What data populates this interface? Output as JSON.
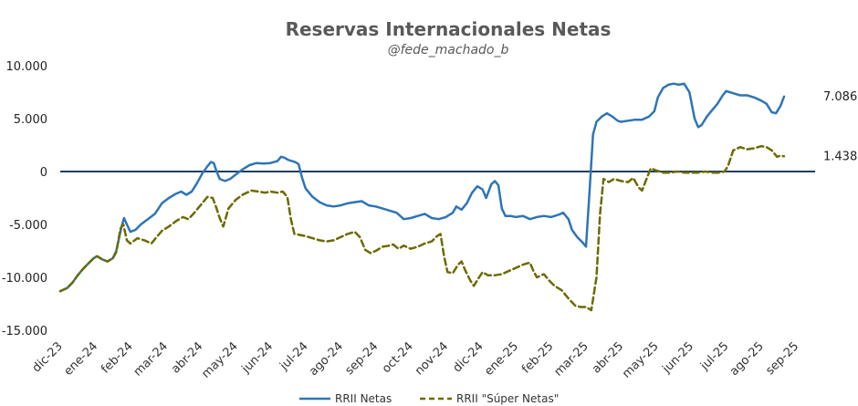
{
  "chart_data": {
    "type": "line",
    "title": "Reservas Internacionales Netas",
    "subtitle": "@fede_machado_b",
    "ylim": [
      -15000,
      10000
    ],
    "yticks": [
      10000,
      5000,
      0,
      -5000,
      -10000,
      -15000
    ],
    "ytick_labels": [
      "10.000",
      "5.000",
      "0",
      "-5.000",
      "-10.000",
      "-15.000"
    ],
    "x_month_labels": [
      "dic-23",
      "ene-24",
      "feb-24",
      "mar-24",
      "abr-24",
      "may-24",
      "jun-24",
      "jul-24",
      "ago-24",
      "sep-24",
      "oct-24",
      "nov-24",
      "dic-24",
      "ene-25",
      "feb-25",
      "mar-25",
      "abr-25",
      "may-25",
      "jun-25",
      "jul-25",
      "ago-25",
      "sep-25"
    ],
    "x_unit": "months since dic-23",
    "colors": {
      "netas": "#2E75B6",
      "super": "#6B6B00",
      "zero_line": "#1F3F5F"
    },
    "series": [
      {
        "name": "RRII Netas",
        "style": "solid",
        "end_label": "7.086",
        "points": [
          [
            0.0,
            -11300
          ],
          [
            0.2,
            -11000
          ],
          [
            0.35,
            -10500
          ],
          [
            0.5,
            -9800
          ],
          [
            0.65,
            -9200
          ],
          [
            0.8,
            -8700
          ],
          [
            0.95,
            -8200
          ],
          [
            1.05,
            -8000
          ],
          [
            1.2,
            -8300
          ],
          [
            1.35,
            -8500
          ],
          [
            1.5,
            -8200
          ],
          [
            1.6,
            -7500
          ],
          [
            1.75,
            -5200
          ],
          [
            1.82,
            -4400
          ],
          [
            1.9,
            -5000
          ],
          [
            2.0,
            -5700
          ],
          [
            2.15,
            -5500
          ],
          [
            2.3,
            -5000
          ],
          [
            2.5,
            -4500
          ],
          [
            2.7,
            -4000
          ],
          [
            2.9,
            -3000
          ],
          [
            3.1,
            -2500
          ],
          [
            3.3,
            -2100
          ],
          [
            3.45,
            -1900
          ],
          [
            3.6,
            -2200
          ],
          [
            3.75,
            -1900
          ],
          [
            3.9,
            -1100
          ],
          [
            4.05,
            -200
          ],
          [
            4.2,
            500
          ],
          [
            4.3,
            900
          ],
          [
            4.38,
            800
          ],
          [
            4.45,
            100
          ],
          [
            4.55,
            -700
          ],
          [
            4.7,
            -900
          ],
          [
            4.85,
            -700
          ],
          [
            5.0,
            -300
          ],
          [
            5.2,
            200
          ],
          [
            5.4,
            600
          ],
          [
            5.6,
            800
          ],
          [
            5.8,
            750
          ],
          [
            6.0,
            800
          ],
          [
            6.2,
            1000
          ],
          [
            6.3,
            1400
          ],
          [
            6.4,
            1300
          ],
          [
            6.5,
            1100
          ],
          [
            6.6,
            1000
          ],
          [
            6.7,
            900
          ],
          [
            6.8,
            700
          ],
          [
            6.9,
            -600
          ],
          [
            7.0,
            -1600
          ],
          [
            7.2,
            -2400
          ],
          [
            7.4,
            -2900
          ],
          [
            7.6,
            -3200
          ],
          [
            7.8,
            -3300
          ],
          [
            8.0,
            -3200
          ],
          [
            8.2,
            -3000
          ],
          [
            8.4,
            -2900
          ],
          [
            8.6,
            -2800
          ],
          [
            8.8,
            -3200
          ],
          [
            9.0,
            -3300
          ],
          [
            9.2,
            -3500
          ],
          [
            9.4,
            -3700
          ],
          [
            9.6,
            -3900
          ],
          [
            9.8,
            -4500
          ],
          [
            10.0,
            -4400
          ],
          [
            10.2,
            -4200
          ],
          [
            10.4,
            -4000
          ],
          [
            10.6,
            -4400
          ],
          [
            10.8,
            -4500
          ],
          [
            11.0,
            -4300
          ],
          [
            11.2,
            -3900
          ],
          [
            11.3,
            -3300
          ],
          [
            11.45,
            -3600
          ],
          [
            11.6,
            -3000
          ],
          [
            11.75,
            -2000
          ],
          [
            11.9,
            -1400
          ],
          [
            12.05,
            -1700
          ],
          [
            12.15,
            -2500
          ],
          [
            12.3,
            -1200
          ],
          [
            12.4,
            -900
          ],
          [
            12.5,
            -1300
          ],
          [
            12.6,
            -3500
          ],
          [
            12.7,
            -4200
          ],
          [
            12.85,
            -4200
          ],
          [
            13.0,
            -4300
          ],
          [
            13.2,
            -4200
          ],
          [
            13.4,
            -4500
          ],
          [
            13.6,
            -4300
          ],
          [
            13.8,
            -4200
          ],
          [
            14.0,
            -4300
          ],
          [
            14.2,
            -4100
          ],
          [
            14.35,
            -3900
          ],
          [
            14.5,
            -4500
          ],
          [
            14.6,
            -5500
          ],
          [
            14.75,
            -6200
          ],
          [
            14.9,
            -6700
          ],
          [
            15.0,
            -7100
          ],
          [
            15.1,
            -2000
          ],
          [
            15.2,
            3500
          ],
          [
            15.3,
            4700
          ],
          [
            15.45,
            5200
          ],
          [
            15.6,
            5500
          ],
          [
            15.75,
            5200
          ],
          [
            15.9,
            4800
          ],
          [
            16.0,
            4700
          ],
          [
            16.2,
            4800
          ],
          [
            16.4,
            4900
          ],
          [
            16.6,
            4900
          ],
          [
            16.8,
            5200
          ],
          [
            16.95,
            5700
          ],
          [
            17.05,
            7000
          ],
          [
            17.2,
            7900
          ],
          [
            17.35,
            8200
          ],
          [
            17.5,
            8300
          ],
          [
            17.65,
            8200
          ],
          [
            17.8,
            8300
          ],
          [
            17.95,
            7500
          ],
          [
            18.1,
            5000
          ],
          [
            18.2,
            4200
          ],
          [
            18.3,
            4400
          ],
          [
            18.45,
            5200
          ],
          [
            18.6,
            5800
          ],
          [
            18.75,
            6400
          ],
          [
            18.9,
            7200
          ],
          [
            19.0,
            7600
          ],
          [
            19.2,
            7400
          ],
          [
            19.4,
            7200
          ],
          [
            19.6,
            7200
          ],
          [
            19.8,
            7000
          ],
          [
            20.0,
            6700
          ],
          [
            20.15,
            6400
          ],
          [
            20.3,
            5600
          ],
          [
            20.42,
            5500
          ],
          [
            20.55,
            6200
          ],
          [
            20.65,
            7086
          ]
        ]
      },
      {
        "name": "RRII \"Súper Netas\"",
        "style": "dashed",
        "end_label": "1.438",
        "points": [
          [
            0.0,
            -11300
          ],
          [
            0.2,
            -11000
          ],
          [
            0.35,
            -10500
          ],
          [
            0.5,
            -9800
          ],
          [
            0.65,
            -9200
          ],
          [
            0.8,
            -8700
          ],
          [
            0.95,
            -8200
          ],
          [
            1.05,
            -8000
          ],
          [
            1.2,
            -8300
          ],
          [
            1.35,
            -8500
          ],
          [
            1.5,
            -8200
          ],
          [
            1.6,
            -7600
          ],
          [
            1.72,
            -5400
          ],
          [
            1.8,
            -5000
          ],
          [
            1.9,
            -6500
          ],
          [
            2.0,
            -6800
          ],
          [
            2.2,
            -6300
          ],
          [
            2.4,
            -6500
          ],
          [
            2.6,
            -6800
          ],
          [
            2.75,
            -6200
          ],
          [
            2.9,
            -5600
          ],
          [
            3.1,
            -5200
          ],
          [
            3.3,
            -4700
          ],
          [
            3.5,
            -4300
          ],
          [
            3.65,
            -4500
          ],
          [
            3.8,
            -4000
          ],
          [
            4.0,
            -3200
          ],
          [
            4.2,
            -2400
          ],
          [
            4.35,
            -2500
          ],
          [
            4.45,
            -3400
          ],
          [
            4.55,
            -4400
          ],
          [
            4.65,
            -5200
          ],
          [
            4.8,
            -3500
          ],
          [
            5.0,
            -2700
          ],
          [
            5.2,
            -2200
          ],
          [
            5.45,
            -1800
          ],
          [
            5.65,
            -1900
          ],
          [
            5.85,
            -2000
          ],
          [
            6.0,
            -1900
          ],
          [
            6.2,
            -2000
          ],
          [
            6.35,
            -1900
          ],
          [
            6.48,
            -2400
          ],
          [
            6.58,
            -4500
          ],
          [
            6.68,
            -5900
          ],
          [
            6.85,
            -6000
          ],
          [
            7.0,
            -6100
          ],
          [
            7.2,
            -6300
          ],
          [
            7.4,
            -6500
          ],
          [
            7.6,
            -6600
          ],
          [
            7.8,
            -6500
          ],
          [
            8.0,
            -6200
          ],
          [
            8.2,
            -5900
          ],
          [
            8.4,
            -5700
          ],
          [
            8.55,
            -6200
          ],
          [
            8.7,
            -7400
          ],
          [
            8.85,
            -7700
          ],
          [
            9.0,
            -7500
          ],
          [
            9.2,
            -7100
          ],
          [
            9.4,
            -7000
          ],
          [
            9.5,
            -6900
          ],
          [
            9.65,
            -7300
          ],
          [
            9.8,
            -7000
          ],
          [
            10.0,
            -7300
          ],
          [
            10.2,
            -7100
          ],
          [
            10.4,
            -6800
          ],
          [
            10.6,
            -6600
          ],
          [
            10.75,
            -6100
          ],
          [
            10.85,
            -5900
          ],
          [
            10.95,
            -8000
          ],
          [
            11.05,
            -9500
          ],
          [
            11.2,
            -9600
          ],
          [
            11.35,
            -8800
          ],
          [
            11.45,
            -8500
          ],
          [
            11.55,
            -9300
          ],
          [
            11.7,
            -10300
          ],
          [
            11.8,
            -10800
          ],
          [
            11.95,
            -10000
          ],
          [
            12.05,
            -9500
          ],
          [
            12.2,
            -9800
          ],
          [
            12.4,
            -9800
          ],
          [
            12.6,
            -9700
          ],
          [
            12.8,
            -9400
          ],
          [
            13.0,
            -9100
          ],
          [
            13.2,
            -8800
          ],
          [
            13.4,
            -8600
          ],
          [
            13.5,
            -9400
          ],
          [
            13.6,
            -10000
          ],
          [
            13.8,
            -9700
          ],
          [
            13.95,
            -10300
          ],
          [
            14.1,
            -10800
          ],
          [
            14.3,
            -11200
          ],
          [
            14.5,
            -12000
          ],
          [
            14.7,
            -12700
          ],
          [
            14.85,
            -12800
          ],
          [
            15.0,
            -12800
          ],
          [
            15.15,
            -13100
          ],
          [
            15.3,
            -10000
          ],
          [
            15.4,
            -4000
          ],
          [
            15.5,
            -700
          ],
          [
            15.65,
            -1000
          ],
          [
            15.8,
            -700
          ],
          [
            16.0,
            -900
          ],
          [
            16.2,
            -1000
          ],
          [
            16.35,
            -600
          ],
          [
            16.5,
            -1500
          ],
          [
            16.6,
            -1800
          ],
          [
            16.75,
            -500
          ],
          [
            16.85,
            300
          ],
          [
            17.0,
            100
          ],
          [
            17.2,
            -100
          ],
          [
            17.4,
            -100
          ],
          [
            17.6,
            0
          ],
          [
            17.8,
            -100
          ],
          [
            18.0,
            -100
          ],
          [
            18.2,
            -100
          ],
          [
            18.4,
            0
          ],
          [
            18.6,
            -100
          ],
          [
            18.8,
            -100
          ],
          [
            18.95,
            0
          ],
          [
            19.05,
            500
          ],
          [
            19.2,
            2000
          ],
          [
            19.4,
            2300
          ],
          [
            19.6,
            2100
          ],
          [
            19.8,
            2200
          ],
          [
            20.0,
            2400
          ],
          [
            20.15,
            2300
          ],
          [
            20.3,
            2000
          ],
          [
            20.45,
            1400
          ],
          [
            20.55,
            1500
          ],
          [
            20.65,
            1438
          ]
        ]
      }
    ],
    "legend": {
      "position": "bottom-center"
    }
  }
}
